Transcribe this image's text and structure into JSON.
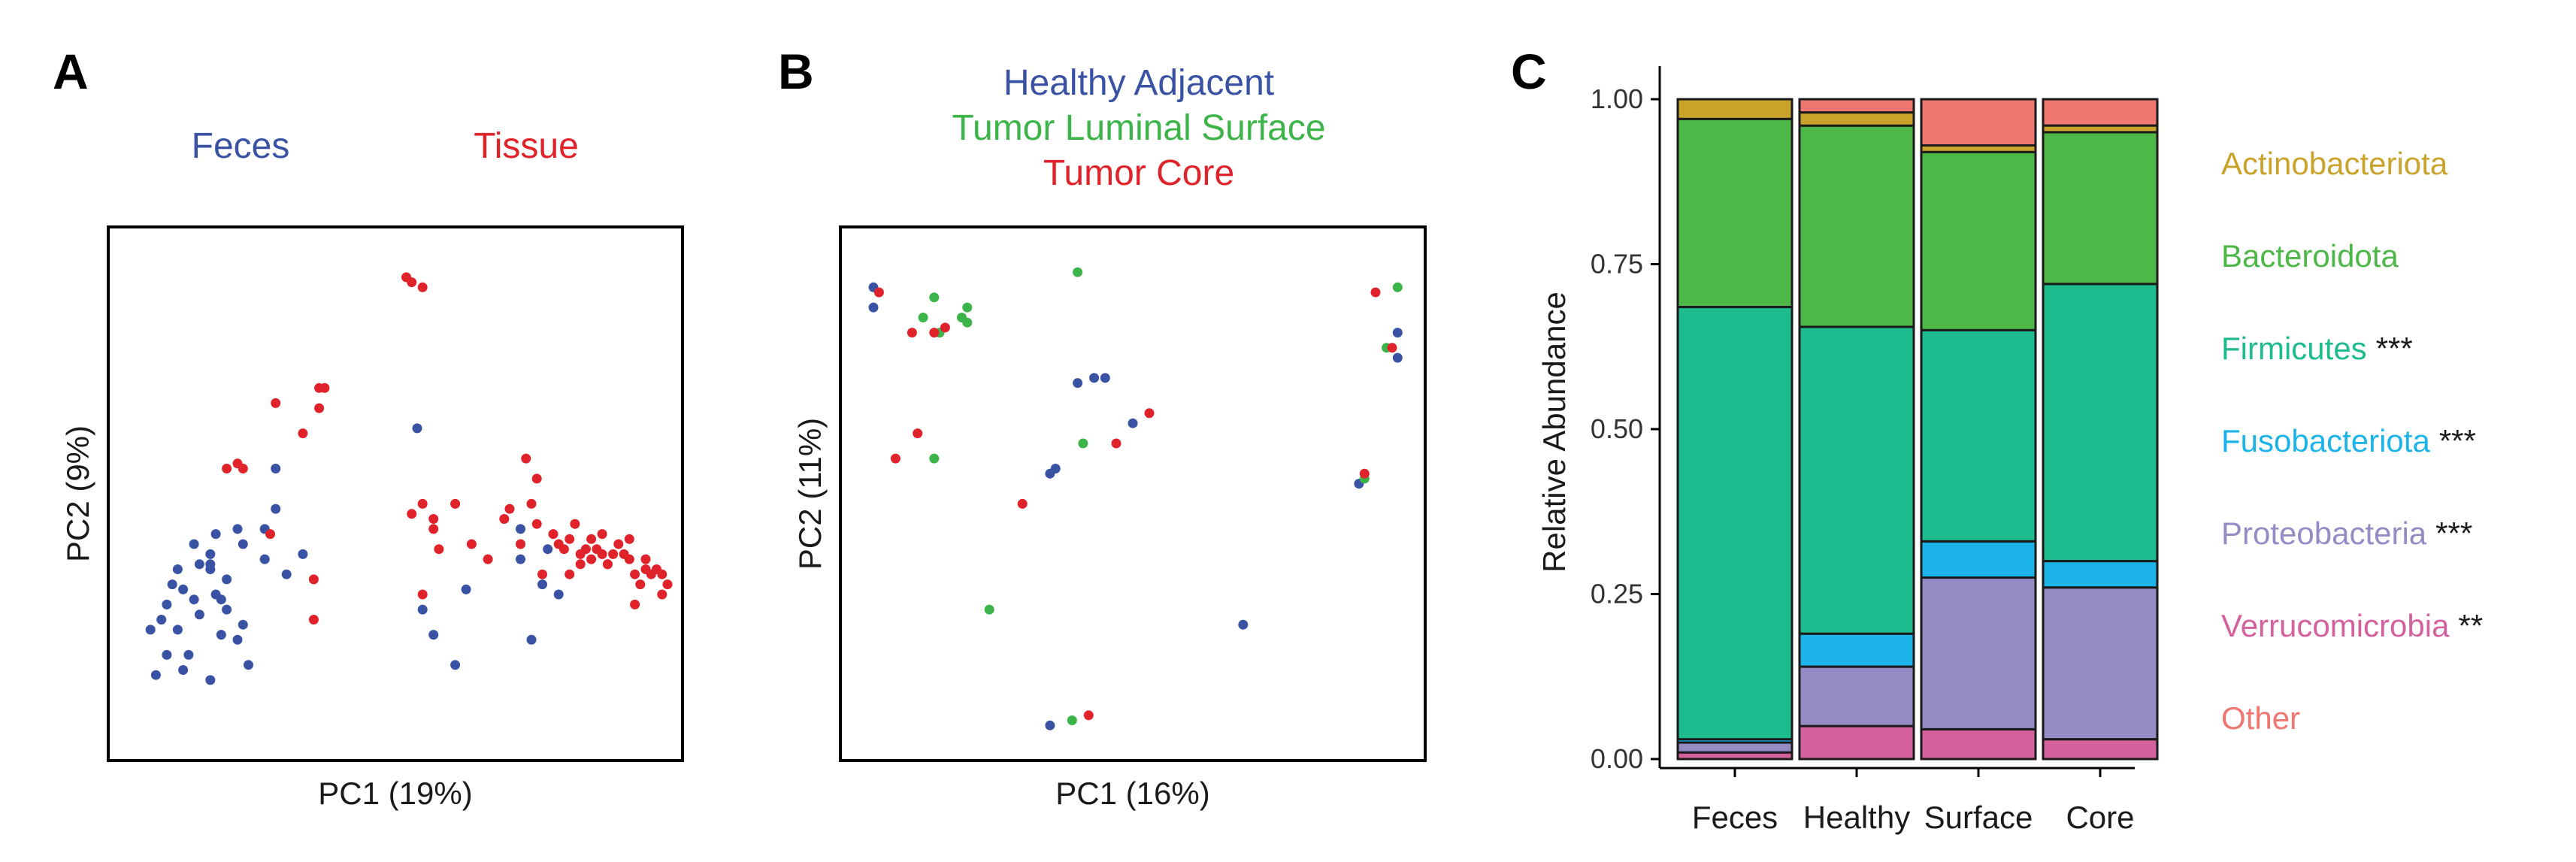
{
  "colors": {
    "blue": "#3a52a4",
    "red": "#e0232b",
    "green": "#3cb44a"
  },
  "chart_data": [
    {
      "panel": "A",
      "type": "scatter",
      "xlabel": "PC1 (19%)",
      "ylabel": "PC2 (9%)",
      "xlim": [
        0,
        100
      ],
      "ylim": [
        0,
        100
      ],
      "groups": [
        {
          "name": "Feces",
          "color": "#3a52a4",
          "points": [
            [
              5,
              23
            ],
            [
              6,
              14
            ],
            [
              7,
              25
            ],
            [
              8,
              28
            ],
            [
              8,
              18
            ],
            [
              10,
              35
            ],
            [
              10,
              23
            ],
            [
              9,
              32
            ],
            [
              11,
              31
            ],
            [
              11,
              15
            ],
            [
              12,
              18
            ],
            [
              13,
              29
            ],
            [
              13,
              40
            ],
            [
              14,
              36
            ],
            [
              14,
              26
            ],
            [
              16,
              38
            ],
            [
              16,
              13
            ],
            [
              17,
              42
            ],
            [
              16,
              35
            ],
            [
              17,
              30
            ],
            [
              18,
              22
            ],
            [
              18,
              29
            ],
            [
              16,
              36
            ],
            [
              19,
              33
            ],
            [
              19,
              27
            ],
            [
              21,
              43
            ],
            [
              21,
              21
            ],
            [
              22,
              24
            ],
            [
              22,
              40
            ],
            [
              23,
              16
            ],
            [
              26,
              37
            ],
            [
              26,
              43
            ],
            [
              28,
              47
            ],
            [
              28,
              55
            ],
            [
              30,
              34
            ],
            [
              33,
              38
            ],
            [
              54,
              63
            ],
            [
              55,
              27
            ],
            [
              57,
              22
            ],
            [
              61,
              16
            ],
            [
              63,
              31
            ],
            [
              73,
              43
            ],
            [
              73,
              37
            ],
            [
              75,
              21
            ],
            [
              77,
              32
            ],
            [
              78,
              39
            ],
            [
              80,
              30
            ]
          ]
        },
        {
          "name": "Tissue",
          "color": "#e0232b",
          "points": [
            [
              19,
              55
            ],
            [
              21,
              56
            ],
            [
              22,
              55
            ],
            [
              27,
              42
            ],
            [
              28,
              68
            ],
            [
              33,
              62
            ],
            [
              35,
              25
            ],
            [
              35,
              33
            ],
            [
              36,
              67
            ],
            [
              36,
              71
            ],
            [
              37,
              71
            ],
            [
              52,
              93
            ],
            [
              53,
              92
            ],
            [
              55,
              91
            ],
            [
              53,
              46
            ],
            [
              55,
              48
            ],
            [
              55,
              30
            ],
            [
              57,
              43
            ],
            [
              57,
              45
            ],
            [
              58,
              39
            ],
            [
              61,
              48
            ],
            [
              64,
              40
            ],
            [
              67,
              37
            ],
            [
              70,
              45
            ],
            [
              71,
              47
            ],
            [
              73,
              40
            ],
            [
              74,
              57
            ],
            [
              75,
              48
            ],
            [
              76,
              53
            ],
            [
              76,
              44
            ],
            [
              77,
              34
            ],
            [
              79,
              42
            ],
            [
              80,
              40
            ],
            [
              81,
              39
            ],
            [
              82,
              41
            ],
            [
              82,
              34
            ],
            [
              83,
              44
            ],
            [
              84,
              38
            ],
            [
              84,
              36
            ],
            [
              85,
              39
            ],
            [
              86,
              41
            ],
            [
              86,
              37
            ],
            [
              87,
              39
            ],
            [
              88,
              38
            ],
            [
              89,
              36
            ],
            [
              90,
              38
            ],
            [
              91,
              40
            ],
            [
              92,
              38
            ],
            [
              93,
              37
            ],
            [
              94,
              34
            ],
            [
              95,
              32
            ],
            [
              94,
              28
            ],
            [
              96,
              35
            ],
            [
              97,
              34
            ],
            [
              98,
              35
            ],
            [
              99,
              34
            ],
            [
              99,
              30
            ],
            [
              100,
              32
            ],
            [
              96,
              37
            ],
            [
              93,
              41
            ],
            [
              88,
              42
            ],
            [
              89,
              36
            ]
          ]
        }
      ]
    },
    {
      "panel": "B",
      "type": "scatter",
      "xlabel": "PC1 (16%)",
      "ylabel": "PC2 (11%)",
      "xlim": [
        0,
        100
      ],
      "ylim": [
        0,
        100
      ],
      "groups": [
        {
          "name": "Healthy Adjacent",
          "color": "#3a52a4",
          "points": [
            [
              3,
              91
            ],
            [
              3,
              87
            ],
            [
              35,
              54
            ],
            [
              36,
              55
            ],
            [
              40,
              72
            ],
            [
              43,
              73
            ],
            [
              45,
              73
            ],
            [
              50,
              64
            ],
            [
              35,
              4
            ],
            [
              70,
              24
            ],
            [
              91,
              52
            ],
            [
              98,
              82
            ],
            [
              98,
              77
            ]
          ]
        },
        {
          "name": "Tumor Luminal Surface",
          "color": "#3cb44a",
          "points": [
            [
              14,
              89
            ],
            [
              12,
              85
            ],
            [
              15,
              82
            ],
            [
              19,
              85
            ],
            [
              20,
              84
            ],
            [
              20,
              87
            ],
            [
              14,
              57
            ],
            [
              24,
              27
            ],
            [
              40,
              94
            ],
            [
              41,
              60
            ],
            [
              39,
              5
            ],
            [
              92,
              53
            ],
            [
              98,
              91
            ],
            [
              96,
              79
            ]
          ]
        },
        {
          "name": "Tumor Core",
          "color": "#e0232b",
          "points": [
            [
              4,
              90
            ],
            [
              10,
              82
            ],
            [
              14,
              82
            ],
            [
              16,
              83
            ],
            [
              11,
              62
            ],
            [
              7,
              57
            ],
            [
              30,
              48
            ],
            [
              47,
              60
            ],
            [
              53,
              66
            ],
            [
              42,
              6
            ],
            [
              92,
              54
            ],
            [
              94,
              90
            ],
            [
              97,
              79
            ]
          ]
        }
      ]
    },
    {
      "panel": "C",
      "type": "bar",
      "stacked": true,
      "categories": [
        "Feces",
        "Healthy",
        "Surface",
        "Core"
      ],
      "ylabel": "Relative Abundance",
      "ylim": [
        0,
        1
      ],
      "yticks": [
        "0.00",
        "0.25",
        "0.50",
        "0.75",
        "1.00"
      ],
      "series": [
        {
          "name": "Verrucomicrobia",
          "stars": "**",
          "color": "#d4609e",
          "values": [
            0.01,
            0.05,
            0.045,
            0.03
          ]
        },
        {
          "name": "Proteobacteria",
          "stars": "***",
          "color": "#978bc5",
          "values": [
            0.015,
            0.09,
            0.23,
            0.23
          ]
        },
        {
          "name": "Fusobacteriota",
          "stars": "***",
          "color": "#1cb3e8",
          "values": [
            0.005,
            0.05,
            0.055,
            0.04
          ]
        },
        {
          "name": "Firmicutes",
          "stars": "***",
          "color": "#1dbb8e",
          "values": [
            0.655,
            0.465,
            0.32,
            0.42
          ]
        },
        {
          "name": "Bacteroidota",
          "stars": "",
          "color": "#4db848",
          "values": [
            0.285,
            0.305,
            0.27,
            0.23
          ]
        },
        {
          "name": "Actinobacteriota",
          "stars": "",
          "color": "#c9a32a",
          "values": [
            0.03,
            0.02,
            0.01,
            0.01
          ]
        },
        {
          "name": "Other",
          "stars": "",
          "color": "#f07671",
          "values": [
            0.0,
            0.02,
            0.07,
            0.04
          ]
        }
      ],
      "legend_order": [
        "Actinobacteriota",
        "Bacteroidota",
        "Firmicutes",
        "Fusobacteriota",
        "Proteobacteria",
        "Verrucomicrobia",
        "Other"
      ]
    }
  ]
}
